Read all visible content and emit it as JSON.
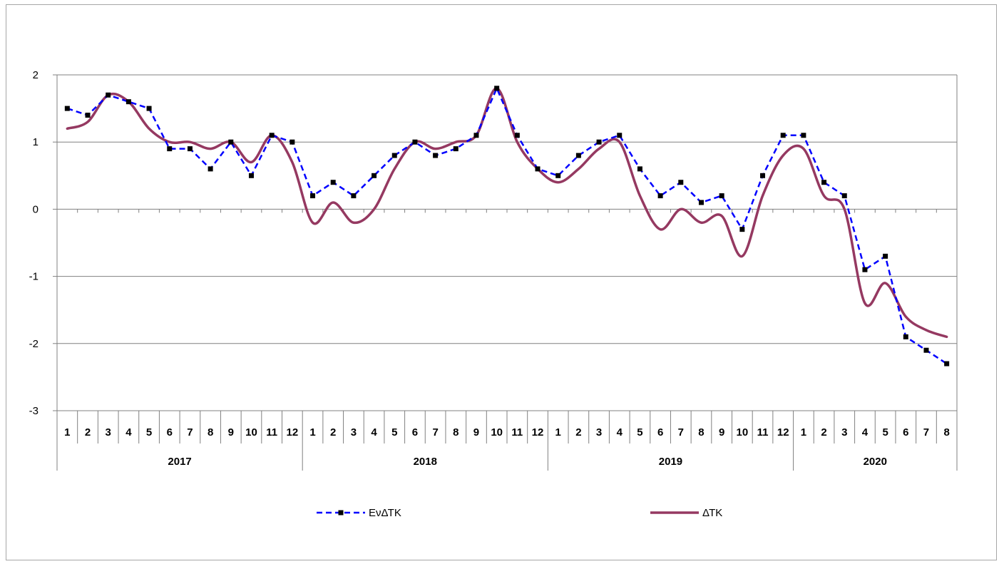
{
  "chart_data": {
    "type": "line",
    "ylim": [
      -3,
      2
    ],
    "yticks": [
      -3,
      -2,
      -1,
      0,
      1,
      2
    ],
    "grid": "horizontal",
    "legend_position": "bottom",
    "months": [
      "1",
      "2",
      "3",
      "4",
      "5",
      "6",
      "7",
      "8",
      "9",
      "10",
      "11",
      "12",
      "1",
      "2",
      "3",
      "4",
      "5",
      "6",
      "7",
      "8",
      "9",
      "10",
      "11",
      "12",
      "1",
      "2",
      "3",
      "4",
      "5",
      "6",
      "7",
      "8",
      "9",
      "10",
      "11",
      "12",
      "1",
      "2",
      "3",
      "4",
      "5",
      "6",
      "7",
      "8"
    ],
    "years": [
      {
        "label": "2017",
        "count": 12
      },
      {
        "label": "2018",
        "count": 12
      },
      {
        "label": "2019",
        "count": 12
      },
      {
        "label": "2020",
        "count": 8
      }
    ],
    "series": [
      {
        "name": "ΕνΔΤΚ",
        "color": "#0000ff",
        "style": "dashed",
        "marker": "square",
        "values": [
          1.5,
          1.4,
          1.7,
          1.6,
          1.5,
          0.9,
          0.9,
          0.6,
          1.0,
          0.5,
          1.1,
          1.0,
          0.2,
          0.4,
          0.2,
          0.5,
          0.8,
          1.0,
          0.8,
          0.9,
          1.1,
          1.8,
          1.1,
          0.6,
          0.5,
          0.8,
          1.0,
          1.1,
          0.6,
          0.2,
          0.4,
          0.1,
          0.2,
          -0.3,
          0.5,
          1.1,
          1.1,
          0.4,
          0.2,
          -0.9,
          -0.7,
          -1.9,
          -2.1,
          -2.3
        ]
      },
      {
        "name": "ΔΤΚ",
        "color": "#953961",
        "style": "solid",
        "marker": "none",
        "values": [
          1.2,
          1.3,
          1.7,
          1.6,
          1.2,
          1.0,
          1.0,
          0.9,
          1.0,
          0.7,
          1.1,
          0.7,
          -0.2,
          0.1,
          -0.2,
          0.0,
          0.6,
          1.0,
          0.9,
          1.0,
          1.1,
          1.8,
          1.0,
          0.6,
          0.4,
          0.6,
          0.9,
          1.0,
          0.2,
          -0.3,
          0.0,
          -0.2,
          -0.1,
          -0.7,
          0.2,
          0.8,
          0.9,
          0.2,
          0.0,
          -1.4,
          -1.1,
          -1.6,
          -1.8,
          -1.9
        ]
      }
    ]
  }
}
